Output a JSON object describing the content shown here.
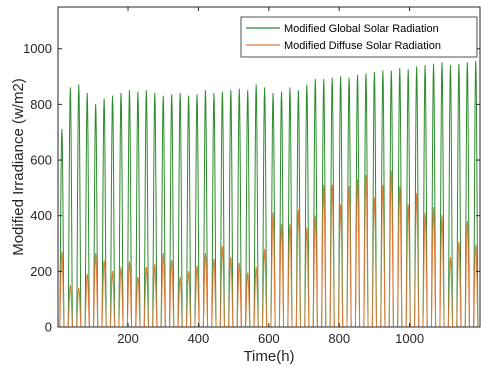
{
  "chart_data": {
    "type": "line",
    "title": "",
    "xlabel": "Time(h)",
    "ylabel": "Modified Irradiance (w/m2)",
    "xlim": [
      1,
      1200
    ],
    "ylim": [
      0,
      1150
    ],
    "xticks": [
      200,
      400,
      600,
      800,
      1000
    ],
    "yticks": [
      0,
      200,
      400,
      600,
      800,
      1000
    ],
    "grid": false,
    "legend_position": "top-right",
    "pattern": "hourly values, zero at night; one peak per 24 h day",
    "day_length_hours": 24,
    "series": [
      {
        "name": "Modified Global Solar Radiation",
        "color": "#2e8b2e",
        "daily_peaks": [
          710,
          860,
          870,
          840,
          800,
          820,
          830,
          840,
          850,
          845,
          850,
          840,
          830,
          835,
          840,
          830,
          835,
          850,
          840,
          845,
          850,
          855,
          850,
          870,
          860,
          840,
          845,
          860,
          850,
          870,
          890,
          890,
          895,
          900,
          895,
          905,
          910,
          915,
          920,
          920,
          930,
          925,
          935,
          940,
          945,
          950,
          940,
          945,
          950,
          955
        ]
      },
      {
        "name": "Modified Diffuse Solar Radiation",
        "color": "#e07b39",
        "daily_peaks": [
          270,
          150,
          140,
          190,
          265,
          240,
          200,
          215,
          235,
          180,
          215,
          225,
          265,
          240,
          180,
          200,
          220,
          265,
          245,
          290,
          250,
          230,
          195,
          215,
          280,
          410,
          370,
          370,
          420,
          355,
          400,
          510,
          510,
          440,
          505,
          530,
          545,
          465,
          510,
          560,
          505,
          440,
          480,
          410,
          430,
          400,
          250,
          305,
          380,
          295
        ]
      }
    ]
  }
}
